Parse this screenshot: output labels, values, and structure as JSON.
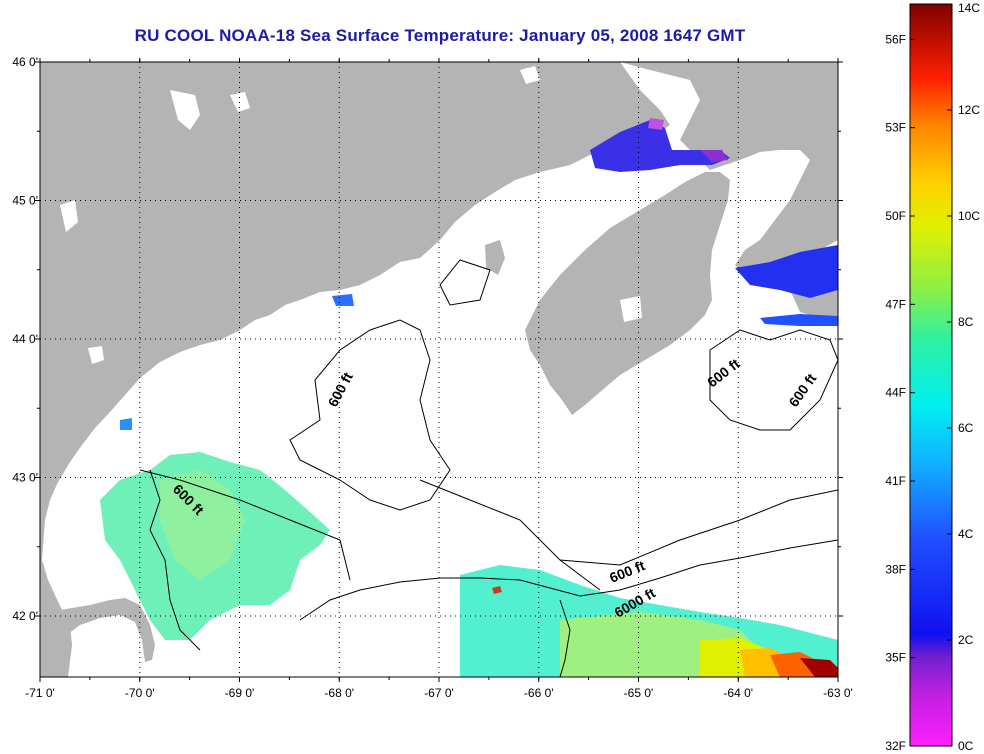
{
  "title": "RU COOL  NOAA-18  Sea Surface Temperature:  January 05, 2008 1647 GMT",
  "map": {
    "lon_ticks": [
      "-71 0'",
      "-70 0'",
      "-69 0'",
      "-68 0'",
      "-67 0'",
      "-66 0'",
      "-65 0'",
      "-64 0'",
      "-63 0'"
    ],
    "lat_ticks": [
      "46 0'",
      "45 0'",
      "44 0'",
      "43 0'",
      "42 0'"
    ],
    "land_color": "#b4b4b4",
    "ocean_cloud_color": "#ffffff",
    "grid": true,
    "contour_labels": [
      "600 ft",
      "600 ft",
      "600 ft",
      "600 ft",
      "600 ft",
      "6000 ft"
    ]
  },
  "colorbar": {
    "celsius_ticks": [
      "14C",
      "12C",
      "10C",
      "8C",
      "6C",
      "4C",
      "2C",
      "0C"
    ],
    "fahrenheit_ticks": [
      "56F",
      "53F",
      "50F",
      "47F",
      "44F",
      "41F",
      "38F",
      "35F",
      "32F"
    ]
  }
}
